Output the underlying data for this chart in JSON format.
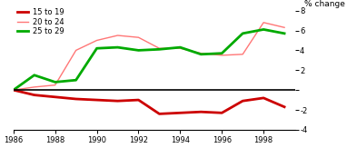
{
  "years": [
    1986,
    1987,
    1988,
    1989,
    1990,
    1991,
    1992,
    1993,
    1994,
    1995,
    1996,
    1997,
    1998,
    1999
  ],
  "values_15to19": [
    0,
    -0.5,
    -0.7,
    -0.9,
    -1.0,
    -1.1,
    -1.0,
    -2.4,
    -2.3,
    -2.2,
    -2.3,
    -1.1,
    -0.8,
    -1.7
  ],
  "values_20to24": [
    0,
    0.3,
    0.5,
    4.0,
    5.0,
    5.5,
    5.3,
    4.2,
    4.2,
    3.7,
    3.5,
    3.6,
    6.8,
    6.3
  ],
  "values_25to29": [
    0,
    1.5,
    0.8,
    1.0,
    4.2,
    4.3,
    4.0,
    4.1,
    4.3,
    3.6,
    3.7,
    5.7,
    6.1,
    5.7
  ],
  "color_15to19": "#cc0000",
  "color_20to24": "#ff7777",
  "color_25to29": "#00aa00",
  "lw_15to19": 2.0,
  "lw_20to24": 1.0,
  "lw_25to29": 2.0,
  "ylabel": "% change",
  "ylim": [
    -4,
    8
  ],
  "yticks": [
    -4,
    -2,
    0,
    2,
    4,
    6,
    8
  ],
  "xlim": [
    1986,
    1999.5
  ],
  "xticks": [
    1986,
    1988,
    1990,
    1992,
    1994,
    1996,
    1998
  ],
  "legend_15to19": "15 to 19",
  "legend_20to24": "20 to 24",
  "legend_25to29": "25 to 29",
  "background_color": "#ffffff"
}
